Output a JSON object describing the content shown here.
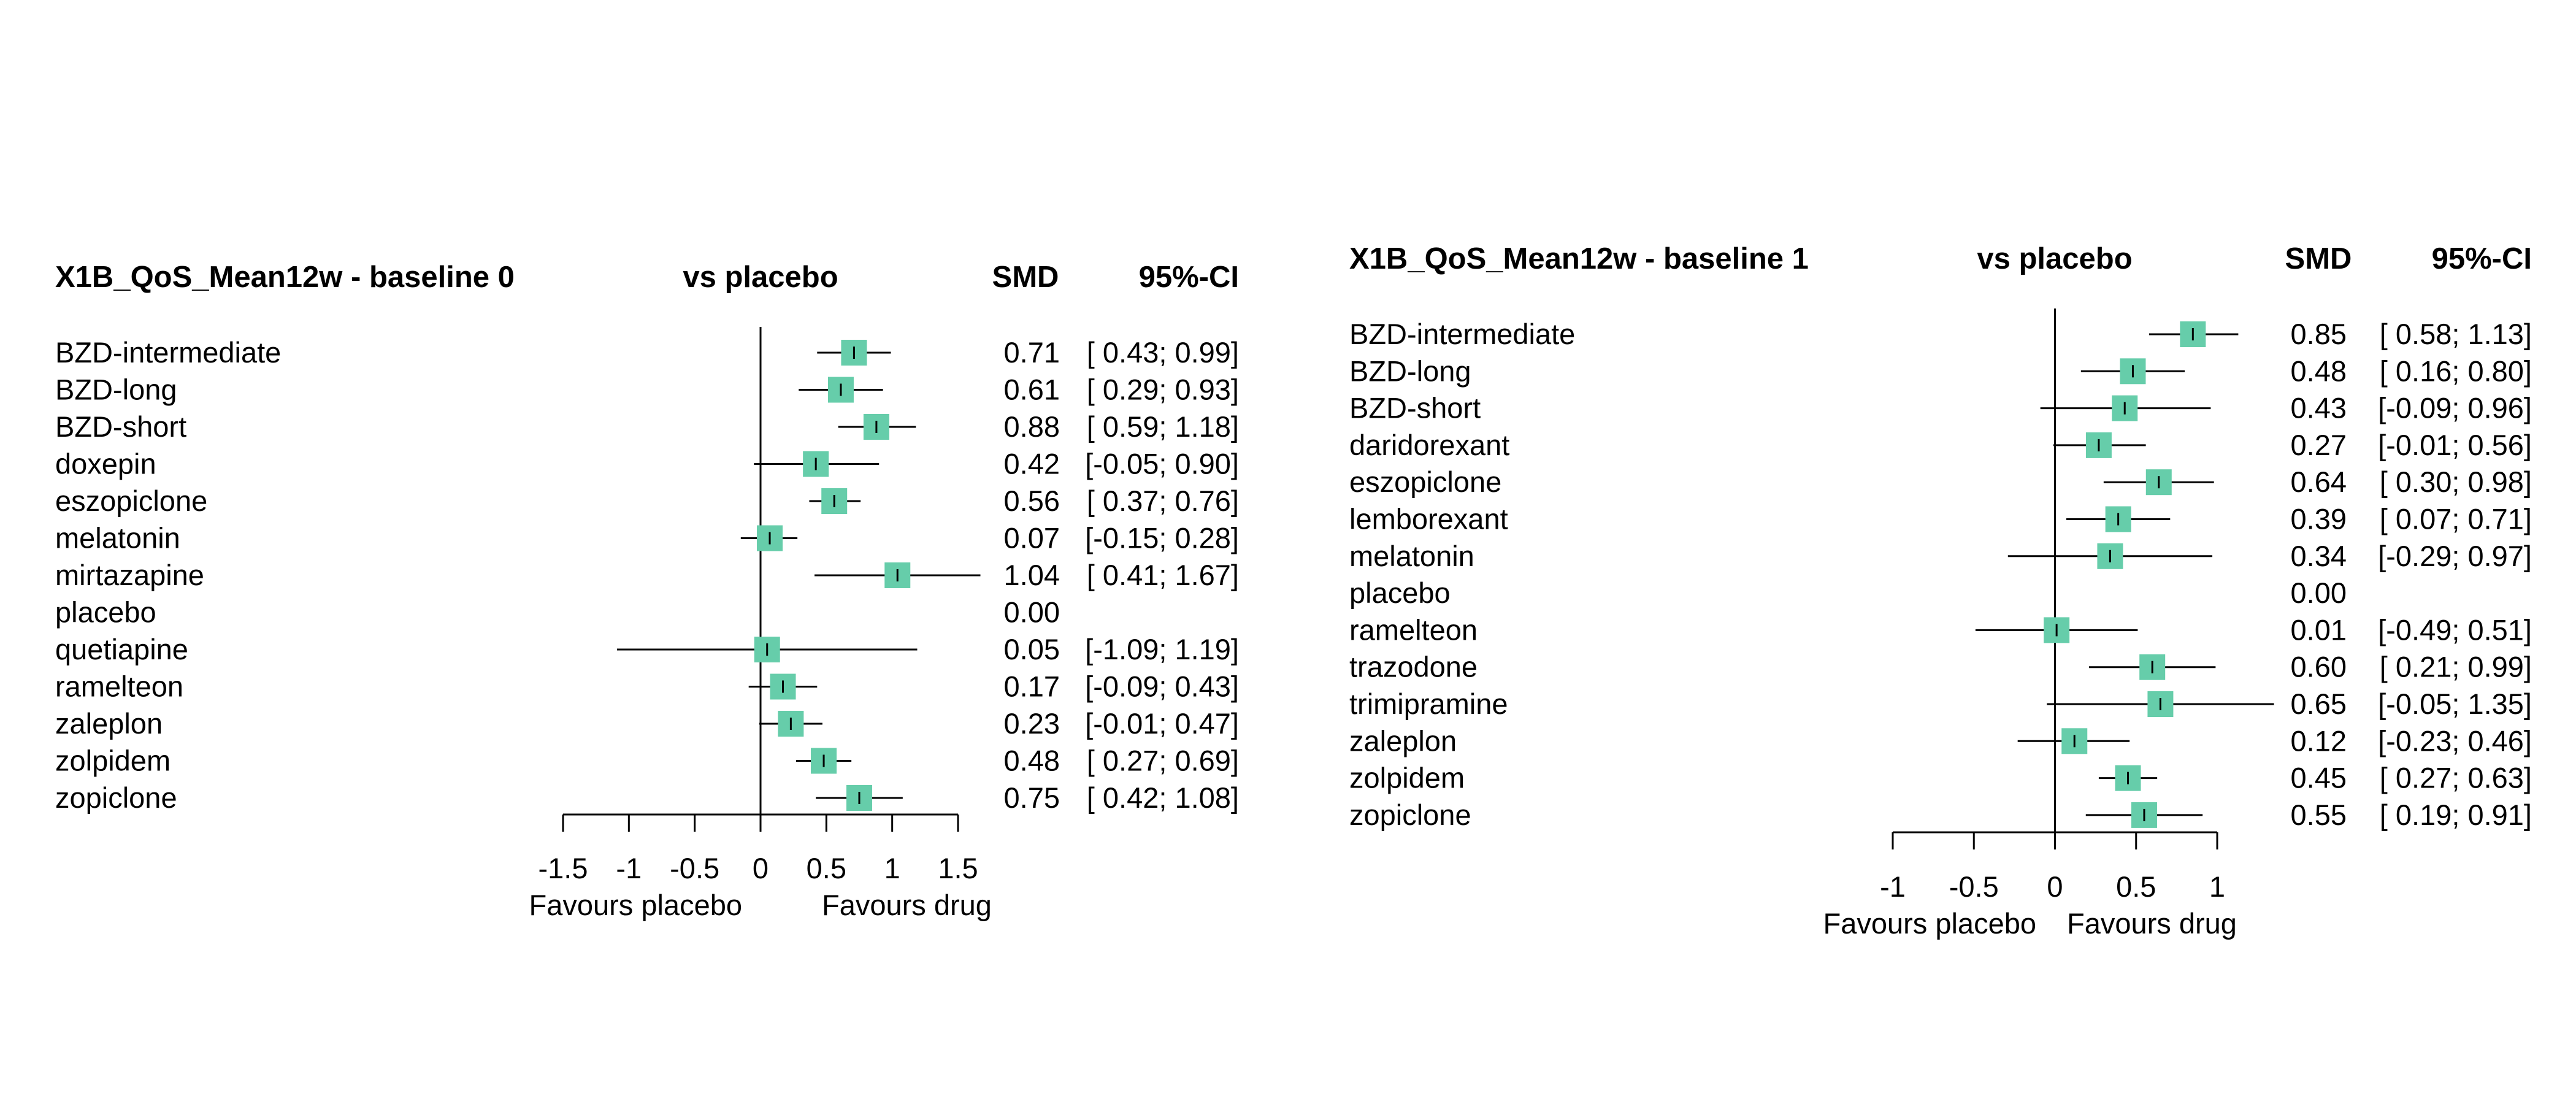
{
  "chart_data": [
    {
      "type": "forest",
      "title": "X1B_QoS_Mean12w - baseline 0",
      "column_headers": {
        "comparison": "vs placebo",
        "estimate": "SMD",
        "ci": "95%-CI"
      },
      "xlabel_left": "Favours placebo",
      "xlabel_right": "Favours drug",
      "xlim": [
        -1.5,
        1.5
      ],
      "ticks": [
        -1.5,
        -1,
        -0.5,
        0,
        0.5,
        1,
        1.5
      ],
      "tick_labels": [
        "-1.5",
        "-1",
        "-0.5",
        "0",
        "0.5",
        "1",
        "1.5"
      ],
      "reference_line": 0,
      "marker_color": "#66CDAA",
      "rows": [
        {
          "name": "BZD-intermediate",
          "smd": 0.71,
          "lo": 0.43,
          "hi": 0.99,
          "smd_text": "0.71",
          "ci_text": "[ 0.43; 0.99]"
        },
        {
          "name": "BZD-long",
          "smd": 0.61,
          "lo": 0.29,
          "hi": 0.93,
          "smd_text": "0.61",
          "ci_text": "[ 0.29; 0.93]"
        },
        {
          "name": "BZD-short",
          "smd": 0.88,
          "lo": 0.59,
          "hi": 1.18,
          "smd_text": "0.88",
          "ci_text": "[ 0.59; 1.18]"
        },
        {
          "name": "doxepin",
          "smd": 0.42,
          "lo": -0.05,
          "hi": 0.9,
          "smd_text": "0.42",
          "ci_text": "[-0.05; 0.90]"
        },
        {
          "name": "eszopiclone",
          "smd": 0.56,
          "lo": 0.37,
          "hi": 0.76,
          "smd_text": "0.56",
          "ci_text": "[ 0.37; 0.76]"
        },
        {
          "name": "melatonin",
          "smd": 0.07,
          "lo": -0.15,
          "hi": 0.28,
          "smd_text": "0.07",
          "ci_text": "[-0.15; 0.28]"
        },
        {
          "name": "mirtazapine",
          "smd": 1.04,
          "lo": 0.41,
          "hi": 1.67,
          "smd_text": "1.04",
          "ci_text": "[ 0.41; 1.67]"
        },
        {
          "name": "placebo",
          "smd": null,
          "lo": null,
          "hi": null,
          "smd_text": "0.00",
          "ci_text": ""
        },
        {
          "name": "quetiapine",
          "smd": 0.05,
          "lo": -1.09,
          "hi": 1.19,
          "smd_text": "0.05",
          "ci_text": "[-1.09; 1.19]"
        },
        {
          "name": "ramelteon",
          "smd": 0.17,
          "lo": -0.09,
          "hi": 0.43,
          "smd_text": "0.17",
          "ci_text": "[-0.09; 0.43]"
        },
        {
          "name": "zaleplon",
          "smd": 0.23,
          "lo": -0.01,
          "hi": 0.47,
          "smd_text": "0.23",
          "ci_text": "[-0.01; 0.47]"
        },
        {
          "name": "zolpidem",
          "smd": 0.48,
          "lo": 0.27,
          "hi": 0.69,
          "smd_text": "0.48",
          "ci_text": "[ 0.27; 0.69]"
        },
        {
          "name": "zopiclone",
          "smd": 0.75,
          "lo": 0.42,
          "hi": 1.08,
          "smd_text": "0.75",
          "ci_text": "[ 0.42; 1.08]"
        }
      ]
    },
    {
      "type": "forest",
      "title": "X1B_QoS_Mean12w - baseline 1",
      "column_headers": {
        "comparison": "vs placebo",
        "estimate": "SMD",
        "ci": "95%-CI"
      },
      "xlabel_left": "Favours placebo",
      "xlabel_right": "Favours drug",
      "xlim": [
        -1,
        1
      ],
      "ticks": [
        -1,
        -0.5,
        0,
        0.5,
        1
      ],
      "tick_labels": [
        "-1",
        "-0.5",
        "0",
        "0.5",
        "1"
      ],
      "reference_line": 0,
      "marker_color": "#66CDAA",
      "rows": [
        {
          "name": "BZD-intermediate",
          "smd": 0.85,
          "lo": 0.58,
          "hi": 1.13,
          "smd_text": "0.85",
          "ci_text": "[ 0.58; 1.13]"
        },
        {
          "name": "BZD-long",
          "smd": 0.48,
          "lo": 0.16,
          "hi": 0.8,
          "smd_text": "0.48",
          "ci_text": "[ 0.16; 0.80]"
        },
        {
          "name": "BZD-short",
          "smd": 0.43,
          "lo": -0.09,
          "hi": 0.96,
          "smd_text": "0.43",
          "ci_text": "[-0.09; 0.96]"
        },
        {
          "name": "daridorexant",
          "smd": 0.27,
          "lo": -0.01,
          "hi": 0.56,
          "smd_text": "0.27",
          "ci_text": "[-0.01; 0.56]"
        },
        {
          "name": "eszopiclone",
          "smd": 0.64,
          "lo": 0.3,
          "hi": 0.98,
          "smd_text": "0.64",
          "ci_text": "[ 0.30; 0.98]"
        },
        {
          "name": "lemborexant",
          "smd": 0.39,
          "lo": 0.07,
          "hi": 0.71,
          "smd_text": "0.39",
          "ci_text": "[ 0.07; 0.71]"
        },
        {
          "name": "melatonin",
          "smd": 0.34,
          "lo": -0.29,
          "hi": 0.97,
          "smd_text": "0.34",
          "ci_text": "[-0.29; 0.97]"
        },
        {
          "name": "placebo",
          "smd": null,
          "lo": null,
          "hi": null,
          "smd_text": "0.00",
          "ci_text": ""
        },
        {
          "name": "ramelteon",
          "smd": 0.01,
          "lo": -0.49,
          "hi": 0.51,
          "smd_text": "0.01",
          "ci_text": "[-0.49; 0.51]"
        },
        {
          "name": "trazodone",
          "smd": 0.6,
          "lo": 0.21,
          "hi": 0.99,
          "smd_text": "0.60",
          "ci_text": "[ 0.21; 0.99]"
        },
        {
          "name": "trimipramine",
          "smd": 0.65,
          "lo": -0.05,
          "hi": 1.35,
          "smd_text": "0.65",
          "ci_text": "[-0.05; 1.35]"
        },
        {
          "name": "zaleplon",
          "smd": 0.12,
          "lo": -0.23,
          "hi": 0.46,
          "smd_text": "0.12",
          "ci_text": "[-0.23; 0.46]"
        },
        {
          "name": "zolpidem",
          "smd": 0.45,
          "lo": 0.27,
          "hi": 0.63,
          "smd_text": "0.45",
          "ci_text": "[ 0.27; 0.63]"
        },
        {
          "name": "zopiclone",
          "smd": 0.55,
          "lo": 0.19,
          "hi": 0.91,
          "smd_text": "0.55",
          "ci_text": "[ 0.19; 0.91]"
        }
      ]
    }
  ]
}
